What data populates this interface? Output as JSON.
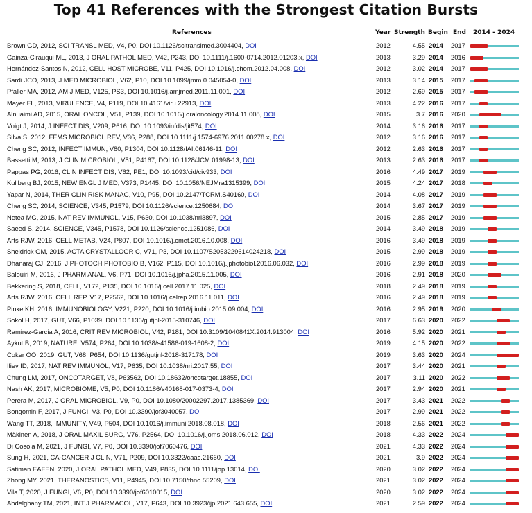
{
  "title": "Top 41 References with the Strongest Citation Bursts",
  "header": {
    "references": "References",
    "year": "Year",
    "strength": "Strength",
    "begin": "Begin",
    "end": "End",
    "range": "2014 - 2024"
  },
  "doi_label": "DOI",
  "colors": {
    "burst": "#d21f1f",
    "timeline": "#5ec4c8",
    "link": "#1a2fb0"
  },
  "chart_data": {
    "type": "table",
    "title": "Top 41 References with the Strongest Citation Bursts",
    "columns": [
      "References",
      "Year",
      "Strength",
      "Begin",
      "End",
      "2014 - 2024"
    ],
    "range": [
      2014,
      2024
    ],
    "rows": [
      {
        "ref": "Brown GD, 2012, SCI TRANSL MED, V4, P0, DOI 10.1126/scitranslmed.3004404,",
        "year": "2012",
        "strength": "4.55",
        "begin": "2014",
        "end": "2017"
      },
      {
        "ref": "Gainza-Cirauqui ML, 2013, J ORAL PATHOL MED, V42, P243, DOI 10.1111/j.1600-0714.2012.01203.x,",
        "year": "2013",
        "strength": "3.29",
        "begin": "2014",
        "end": "2016"
      },
      {
        "ref": "Hernández-Santos N, 2012, CELL HOST MICROBE, V11, P425, DOI 10.1016/j.chom.2012.04.008,",
        "year": "2012",
        "strength": "3.02",
        "begin": "2014",
        "end": "2017"
      },
      {
        "ref": "Sardi JCO, 2013, J MED MICROBIOL, V62, P10, DOI 10.1099/jmm.0.045054-0,",
        "year": "2013",
        "strength": "3.14",
        "begin": "2015",
        "end": "2017"
      },
      {
        "ref": "Pfaller MA, 2012, AM J MED, V125, PS3, DOI 10.1016/j.amjmed.2011.11.001,",
        "year": "2012",
        "strength": "2.69",
        "begin": "2015",
        "end": "2017"
      },
      {
        "ref": "Mayer FL, 2013, VIRULENCE, V4, P119, DOI 10.4161/viru.22913,",
        "year": "2013",
        "strength": "4.22",
        "begin": "2016",
        "end": "2017"
      },
      {
        "ref": "Alnuaimi AD, 2015, ORAL ONCOL, V51, P139, DOI 10.1016/j.oraloncology.2014.11.008,",
        "year": "2015",
        "strength": "3.7",
        "begin": "2016",
        "end": "2020"
      },
      {
        "ref": "Voigt J, 2014, J INFECT DIS, V209, P616, DOI 10.1093/infdis/jit574,",
        "year": "2014",
        "strength": "3.16",
        "begin": "2016",
        "end": "2017"
      },
      {
        "ref": "Silva S, 2012, FEMS MICROBIOL REV, V36, P288, DOI 10.1111/j.1574-6976.2011.00278.x,",
        "year": "2012",
        "strength": "3.16",
        "begin": "2016",
        "end": "2017"
      },
      {
        "ref": "Cheng SC, 2012, INFECT IMMUN, V80, P1304, DOI 10.1128/IAI.06146-11,",
        "year": "2012",
        "strength": "2.63",
        "begin": "2016",
        "end": "2017"
      },
      {
        "ref": "Bassetti M, 2013, J CLIN MICROBIOL, V51, P4167, DOI 10.1128/JCM.01998-13,",
        "year": "2013",
        "strength": "2.63",
        "begin": "2016",
        "end": "2017"
      },
      {
        "ref": "Pappas PG, 2016, CLIN INFECT DIS, V62, PE1, DOI 10.1093/cid/civ933,",
        "year": "2016",
        "strength": "4.49",
        "begin": "2017",
        "end": "2019"
      },
      {
        "ref": "Kullberg BJ, 2015, NEW ENGL J MED, V373, P1445, DOI 10.1056/NEJMra1315399,",
        "year": "2015",
        "strength": "4.24",
        "begin": "2017",
        "end": "2018"
      },
      {
        "ref": "Yapar N, 2014, THER CLIN RISK MANAG, V10, P95, DOI 10.2147/TCRM.S40160,",
        "year": "2014",
        "strength": "4.08",
        "begin": "2017",
        "end": "2019"
      },
      {
        "ref": "Cheng SC, 2014, SCIENCE, V345, P1579, DOI 10.1126/science.1250684,",
        "year": "2014",
        "strength": "3.67",
        "begin": "2017",
        "end": "2019"
      },
      {
        "ref": "Netea MG, 2015, NAT REV IMMUNOL, V15, P630, DOI 10.1038/nri3897,",
        "year": "2015",
        "strength": "2.85",
        "begin": "2017",
        "end": "2019"
      },
      {
        "ref": "Saeed S, 2014, SCIENCE, V345, P1578, DOI 10.1126/science.1251086,",
        "year": "2014",
        "strength": "3.49",
        "begin": "2018",
        "end": "2019"
      },
      {
        "ref": "Arts RJW, 2016, CELL METAB, V24, P807, DOI 10.1016/j.cmet.2016.10.008,",
        "year": "2016",
        "strength": "3.49",
        "begin": "2018",
        "end": "2019"
      },
      {
        "ref": "Sheldrick GM, 2015, ACTA CRYSTALLOGR C, V71, P3, DOI 10.1107/S2053229614024218,",
        "year": "2015",
        "strength": "2.99",
        "begin": "2018",
        "end": "2019"
      },
      {
        "ref": "Dhanaraj CJ, 2016, J PHOTOCH PHOTOBIO B, V162, P115, DOI 10.1016/j.jphotobiol.2016.06.032,",
        "year": "2016",
        "strength": "2.99",
        "begin": "2018",
        "end": "2019"
      },
      {
        "ref": "Balouiri M, 2016, J PHARM ANAL, V6, P71, DOI 10.1016/j.jpha.2015.11.005,",
        "year": "2016",
        "strength": "2.91",
        "begin": "2018",
        "end": "2020"
      },
      {
        "ref": "Bekkering S, 2018, CELL, V172, P135, DOI 10.1016/j.cell.2017.11.025,",
        "year": "2018",
        "strength": "2.49",
        "begin": "2018",
        "end": "2019"
      },
      {
        "ref": "Arts RJW, 2016, CELL REP, V17, P2562, DOI 10.1016/j.celrep.2016.11.011,",
        "year": "2016",
        "strength": "2.49",
        "begin": "2018",
        "end": "2019"
      },
      {
        "ref": "Pinke KH, 2016, IMMUNOBIOLOGY, V221, P220, DOI 10.1016/j.imbio.2015.09.004,",
        "year": "2016",
        "strength": "2.95",
        "begin": "2019",
        "end": "2020"
      },
      {
        "ref": "Sokol H, 2017, GUT, V66, P1039, DOI 10.1136/gutjnl-2015-310746,",
        "year": "2017",
        "strength": "6.63",
        "begin": "2020",
        "end": "2022"
      },
      {
        "ref": "Ramirez-Garcia A, 2016, CRIT REV MICROBIOL, V42, P181, DOI 10.3109/1040841X.2014.913004,",
        "year": "2016",
        "strength": "5.92",
        "begin": "2020",
        "end": "2021"
      },
      {
        "ref": "Aykut B, 2019, NATURE, V574, P264, DOI 10.1038/s41586-019-1608-2,",
        "year": "2019",
        "strength": "4.15",
        "begin": "2020",
        "end": "2022"
      },
      {
        "ref": "Coker OO, 2019, GUT, V68, P654, DOI 10.1136/gutjnl-2018-317178,",
        "year": "2019",
        "strength": "3.63",
        "begin": "2020",
        "end": "2024"
      },
      {
        "ref": "Iliev ID, 2017, NAT REV IMMUNOL, V17, P635, DOI 10.1038/nri.2017.55,",
        "year": "2017",
        "strength": "3.44",
        "begin": "2020",
        "end": "2021"
      },
      {
        "ref": "Chung LM, 2017, ONCOTARGET, V8, P63562, DOI 10.18632/oncotarget.18855,",
        "year": "2017",
        "strength": "3.11",
        "begin": "2020",
        "end": "2022"
      },
      {
        "ref": "Nash AK, 2017, MICROBIOME, V5, P0, DOI 10.1186/s40168-017-0373-4,",
        "year": "2017",
        "strength": "2.94",
        "begin": "2020",
        "end": "2021"
      },
      {
        "ref": "Perera M, 2017, J ORAL MICROBIOL, V9, P0, DOI 10.1080/20002297.2017.1385369,",
        "year": "2017",
        "strength": "3.43",
        "begin": "2021",
        "end": "2022"
      },
      {
        "ref": "Bongomin F, 2017, J FUNGI, V3, P0, DOI 10.3390/jof3040057,",
        "year": "2017",
        "strength": "2.99",
        "begin": "2021",
        "end": "2022"
      },
      {
        "ref": "Wang TT, 2018, IMMUNITY, V49, P504, DOI 10.1016/j.immuni.2018.08.018,",
        "year": "2018",
        "strength": "2.56",
        "begin": "2021",
        "end": "2022"
      },
      {
        "ref": "Mäkinen A, 2018, J ORAL MAXIL SURG, V76, P2564, DOI 10.1016/j.joms.2018.06.012,",
        "year": "2018",
        "strength": "4.33",
        "begin": "2022",
        "end": "2024"
      },
      {
        "ref": "Di Cosola M, 2021, J FUNGI, V7, P0, DOI 10.3390/jof7060476,",
        "year": "2021",
        "strength": "4.33",
        "begin": "2022",
        "end": "2024"
      },
      {
        "ref": "Sung H, 2021, CA-CANCER J CLIN, V71, P209, DOI 10.3322/caac.21660,",
        "year": "2021",
        "strength": "3.9",
        "begin": "2022",
        "end": "2024"
      },
      {
        "ref": "Satiman EAFEN, 2020, J ORAL PATHOL MED, V49, P835, DOI 10.1111/jop.13014,",
        "year": "2020",
        "strength": "3.02",
        "begin": "2022",
        "end": "2024"
      },
      {
        "ref": "Zhong MY, 2021, THERANOSTICS, V11, P4945, DOI 10.7150/thno.55209,",
        "year": "2021",
        "strength": "3.02",
        "begin": "2022",
        "end": "2024"
      },
      {
        "ref": "Vila T, 2020, J FUNGI, V6, P0, DOI 10.3390/jof6010015,",
        "year": "2020",
        "strength": "3.02",
        "begin": "2022",
        "end": "2024"
      },
      {
        "ref": "Abdelghany TM, 2021, INT J PHARMACOL, V17, P643, DOI 10.3923/ijp.2021.643.655,",
        "year": "2021",
        "strength": "2.59",
        "begin": "2022",
        "end": "2024"
      }
    ]
  }
}
